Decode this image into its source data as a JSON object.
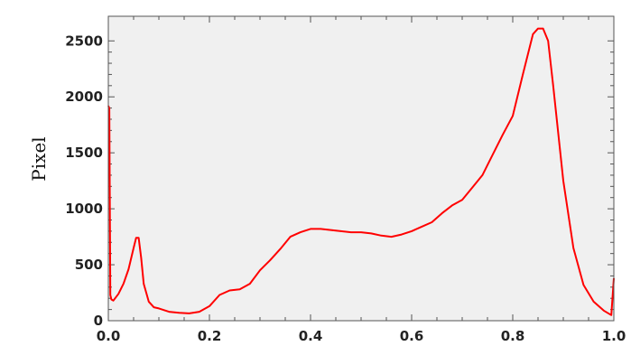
{
  "chart_data": {
    "type": "line",
    "title": "",
    "xlabel": "",
    "ylabel": "Pixel",
    "xlim": [
      0.0,
      1.0
    ],
    "ylim": [
      0,
      2720
    ],
    "x_ticks": [
      "0.0",
      "0.2",
      "0.4",
      "0.6",
      "0.8",
      "1.0"
    ],
    "y_ticks": [
      "0",
      "500",
      "1000",
      "1500",
      "2000",
      "2500"
    ],
    "grid": false,
    "legend": "none",
    "series": [
      {
        "color": "#ff0000",
        "x": [
          0.0,
          0.002,
          0.004,
          0.006,
          0.01,
          0.02,
          0.03,
          0.04,
          0.05,
          0.055,
          0.06,
          0.065,
          0.07,
          0.08,
          0.09,
          0.1,
          0.12,
          0.14,
          0.16,
          0.18,
          0.2,
          0.22,
          0.24,
          0.26,
          0.28,
          0.3,
          0.32,
          0.34,
          0.36,
          0.38,
          0.4,
          0.42,
          0.44,
          0.46,
          0.48,
          0.5,
          0.52,
          0.54,
          0.56,
          0.58,
          0.6,
          0.62,
          0.64,
          0.66,
          0.68,
          0.7,
          0.72,
          0.74,
          0.76,
          0.78,
          0.8,
          0.82,
          0.84,
          0.85,
          0.86,
          0.87,
          0.88,
          0.9,
          0.92,
          0.94,
          0.96,
          0.98,
          0.995,
          1.0
        ],
        "y": [
          1920,
          1900,
          230,
          190,
          180,
          240,
          330,
          460,
          650,
          740,
          740,
          560,
          330,
          170,
          120,
          110,
          80,
          70,
          65,
          80,
          130,
          230,
          270,
          280,
          330,
          450,
          540,
          640,
          750,
          790,
          820,
          820,
          810,
          800,
          790,
          790,
          780,
          760,
          750,
          770,
          800,
          840,
          880,
          960,
          1030,
          1080,
          1190,
          1300,
          1480,
          1660,
          1830,
          2200,
          2560,
          2610,
          2610,
          2500,
          2100,
          1250,
          650,
          320,
          170,
          90,
          50,
          380
        ]
      }
    ]
  }
}
